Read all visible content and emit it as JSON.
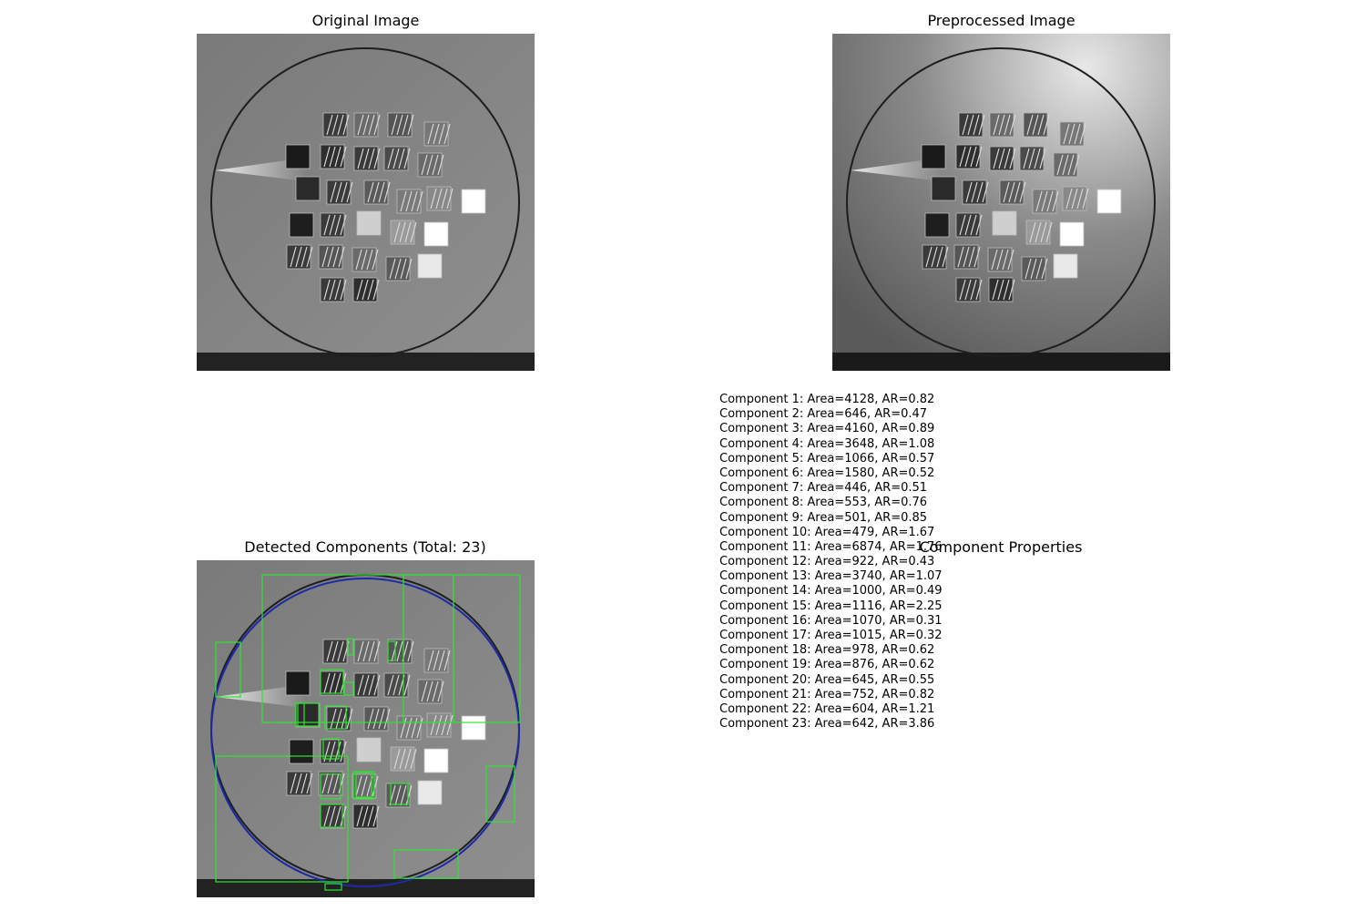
{
  "panels": {
    "original": {
      "title": "Original Image"
    },
    "preprocessed": {
      "title": "Preprocessed Image"
    },
    "detected": {
      "title": "Detected Components (Total: 23)"
    },
    "properties": {
      "title": "Component Properties"
    }
  },
  "colors": {
    "bounding_box": "#2ee62e",
    "contour": "#1c2aa8"
  },
  "components": [
    "Component 1: Area=4128, AR=0.82",
    "Component 2: Area=646, AR=0.47",
    "Component 3: Area=4160, AR=0.89",
    "Component 4: Area=3648, AR=1.08",
    "Component 5: Area=1066, AR=0.57",
    "Component 6: Area=1580, AR=0.52",
    "Component 7: Area=446, AR=0.51",
    "Component 8: Area=553, AR=0.76",
    "Component 9: Area=501, AR=0.85",
    "Component 10: Area=479, AR=1.67",
    "Component 11: Area=6874, AR=1.76",
    "Component 12: Area=922, AR=0.43",
    "Component 13: Area=3740, AR=1.07",
    "Component 14: Area=1000, AR=0.49",
    "Component 15: Area=1116, AR=2.25",
    "Component 16: Area=1070, AR=0.31",
    "Component 17: Area=1015, AR=0.32",
    "Component 18: Area=978, AR=0.62",
    "Component 19: Area=876, AR=0.62",
    "Component 20: Area=645, AR=0.55",
    "Component 21: Area=752, AR=0.82",
    "Component 22: Area=604, AR=1.21",
    "Component 23: Area=642, AR=3.86"
  ]
}
